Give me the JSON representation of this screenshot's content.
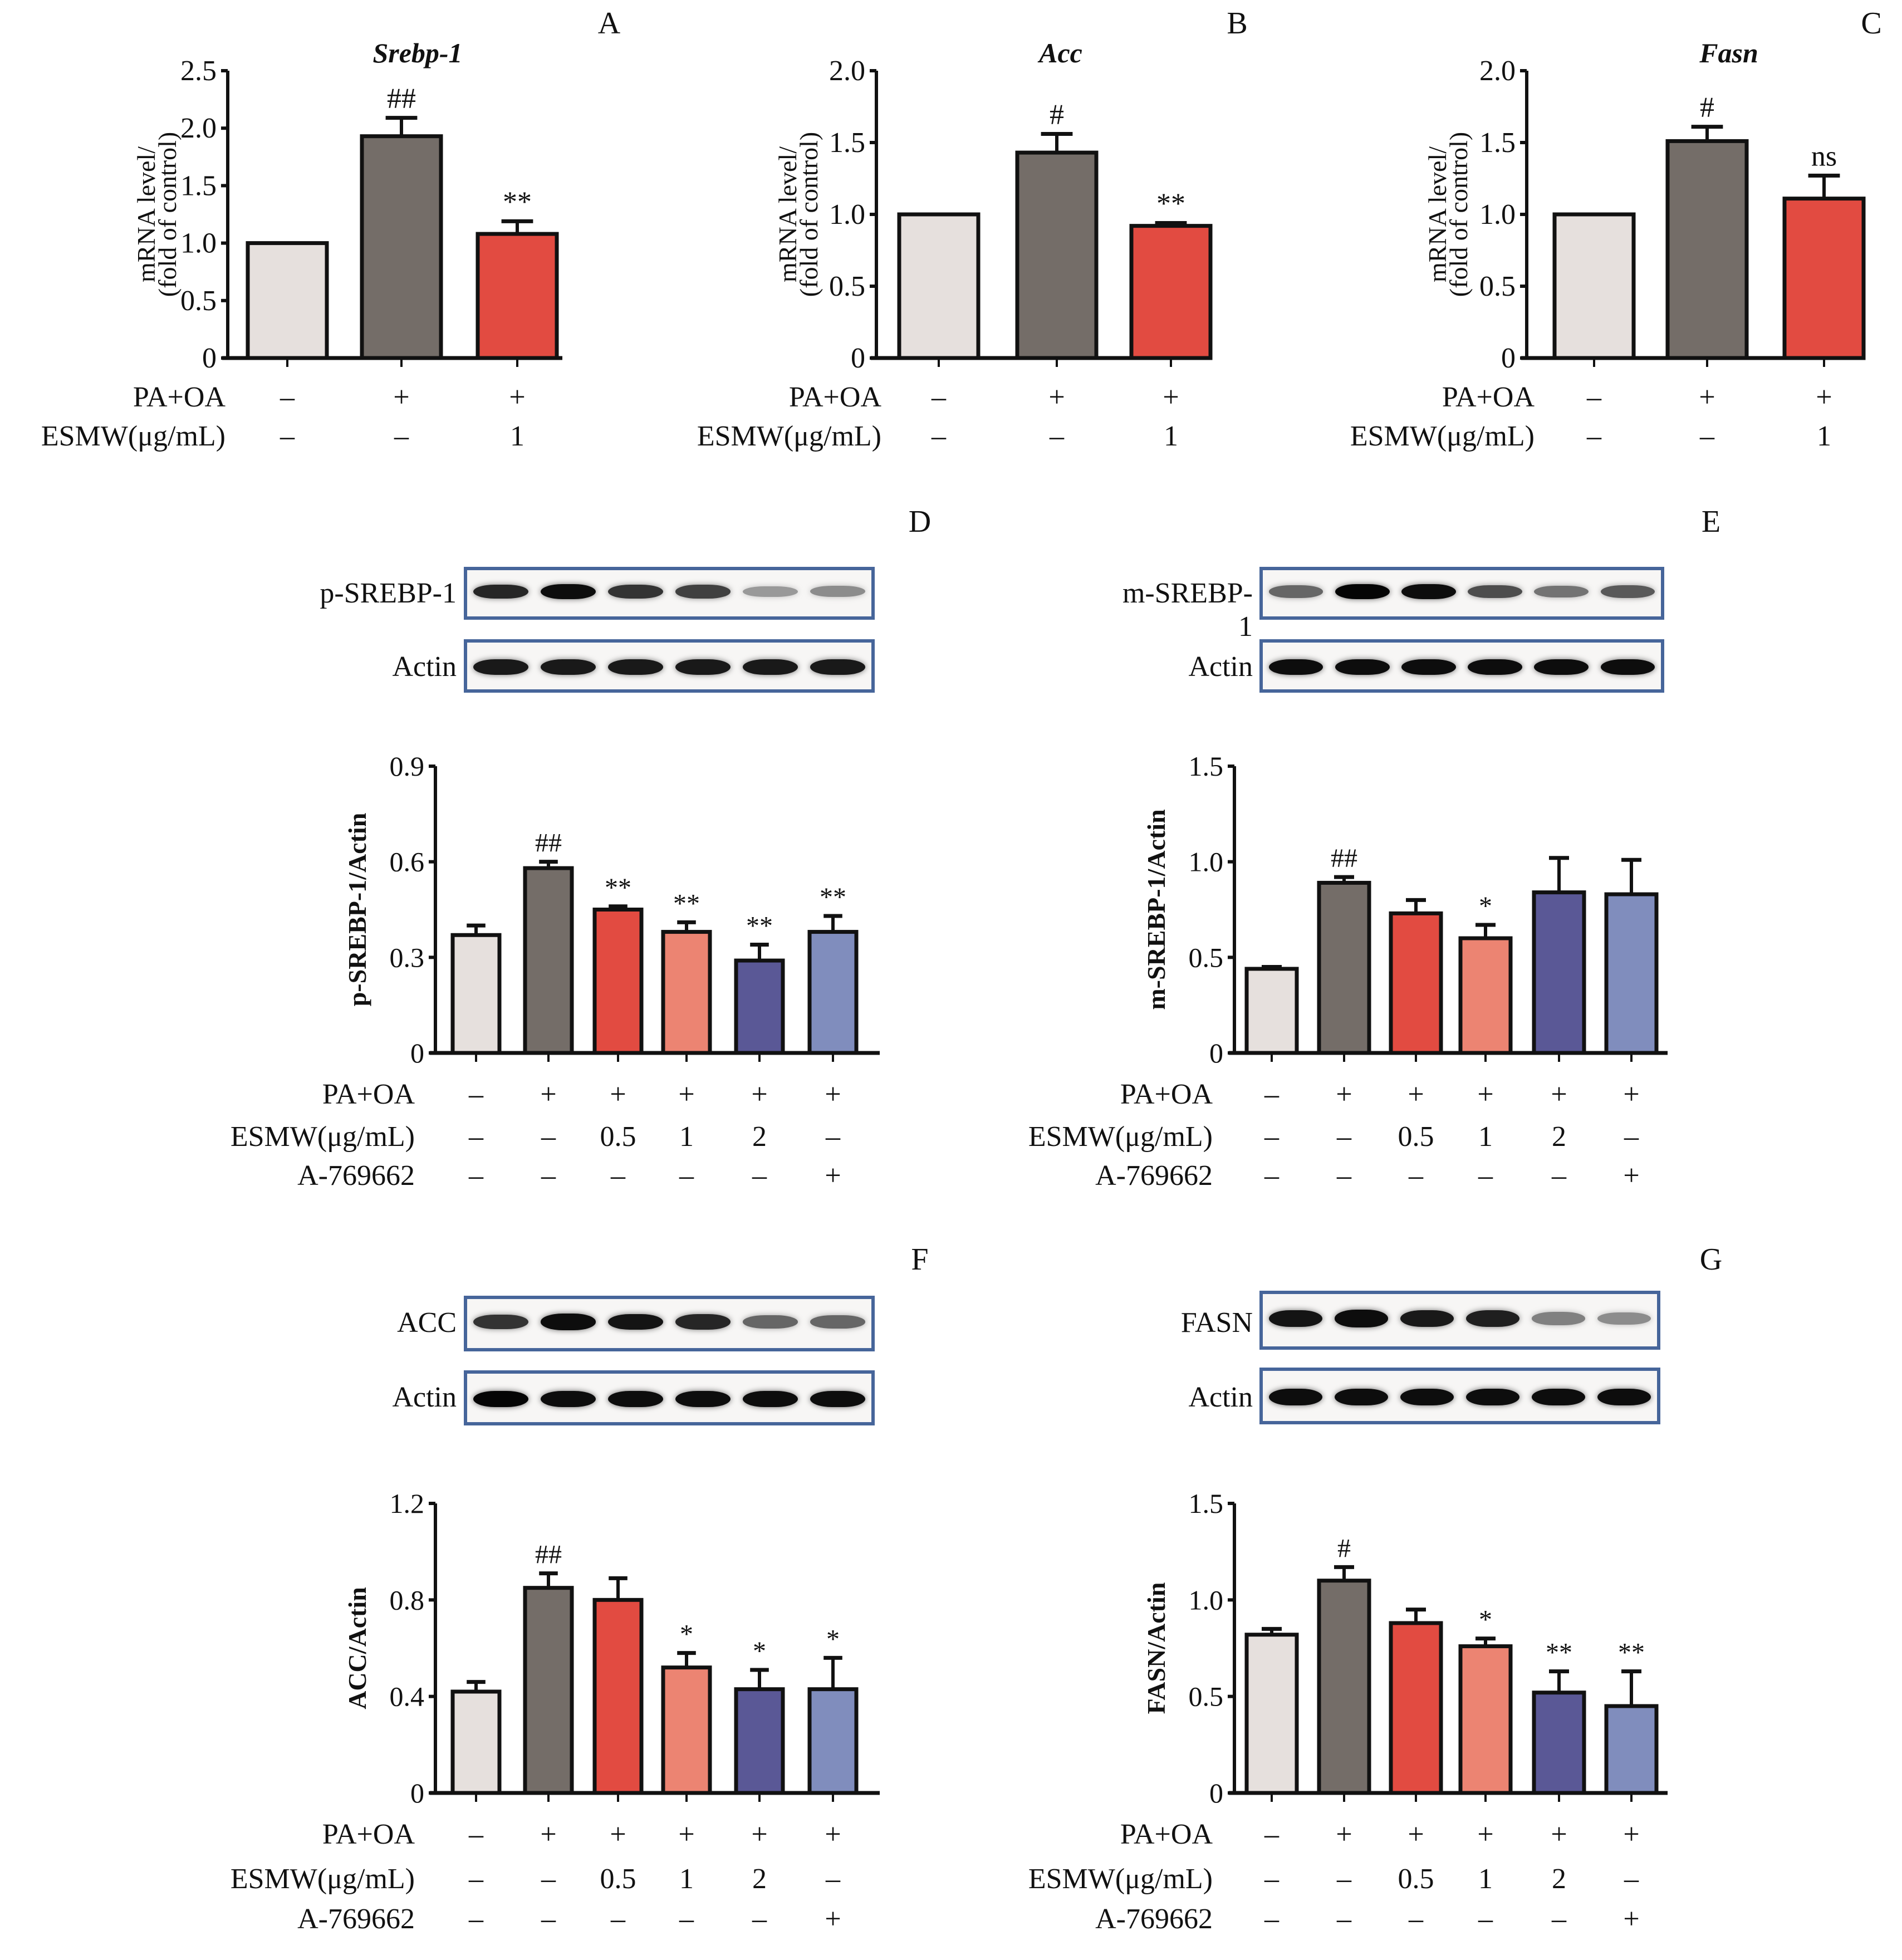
{
  "panel_letters": [
    "A",
    "B",
    "C",
    "D",
    "E",
    "F",
    "G"
  ],
  "treatment_labels": {
    "pa_oa": "PA+OA",
    "esmw": "ESMW(μg/mL)",
    "a769662": "A-769662"
  },
  "colors": {
    "control": "#E6E0DD",
    "model": "#746D68",
    "esmw_0_5": "#E24B41",
    "esmw_1": "#EC8472",
    "esmw_2": "#5A5896",
    "a769662": "#808DBD",
    "blot_frame": "#46659A"
  },
  "blots": {
    "D": {
      "target": "p-SREBP-1",
      "loading": "Actin",
      "target_intensity": [
        0.85,
        0.95,
        0.8,
        0.75,
        0.4,
        0.45
      ],
      "loading_intensity": [
        0.9,
        0.9,
        0.9,
        0.9,
        0.9,
        0.9
      ]
    },
    "E": {
      "target": "m-SREBP-1",
      "loading": "Actin",
      "target_intensity": [
        0.6,
        0.98,
        0.95,
        0.7,
        0.55,
        0.65
      ],
      "loading_intensity": [
        0.95,
        0.95,
        0.95,
        0.95,
        0.95,
        0.95
      ]
    },
    "F": {
      "target": "ACC",
      "loading": "Actin",
      "target_intensity": [
        0.8,
        0.95,
        0.92,
        0.85,
        0.6,
        0.6
      ],
      "loading_intensity": [
        0.98,
        0.95,
        0.95,
        0.95,
        0.95,
        0.95
      ]
    },
    "G": {
      "target": "FASN",
      "loading": "Actin",
      "target_intensity": [
        0.92,
        0.95,
        0.9,
        0.88,
        0.5,
        0.45
      ],
      "loading_intensity": [
        0.95,
        0.95,
        0.95,
        0.95,
        0.95,
        0.95
      ]
    }
  },
  "chart_data": [
    {
      "panel": "A",
      "type": "bar",
      "title": "Srebp-1",
      "title_italic": true,
      "ylabel": [
        "mRNA level/",
        "(fold of control)"
      ],
      "ylim": [
        0,
        2.5
      ],
      "yticks": [
        "0",
        "0.5",
        "1.0",
        "1.5",
        "2.0",
        "2.5"
      ],
      "ytick_values": [
        0,
        0.5,
        1.0,
        1.5,
        2.0,
        2.5
      ],
      "values": [
        1.0,
        1.93,
        1.08
      ],
      "error": [
        0.0,
        0.16,
        0.11
      ],
      "annotations": [
        "",
        "##",
        "**"
      ],
      "rows": {
        "pa_oa": [
          "–",
          "+",
          "+"
        ],
        "esmw": [
          "–",
          "–",
          "1"
        ]
      },
      "colors": [
        "control",
        "model",
        "esmw_0_5"
      ]
    },
    {
      "panel": "B",
      "type": "bar",
      "title": "Acc",
      "title_italic": true,
      "ylabel": [
        "mRNA level/",
        "(fold of control)"
      ],
      "ylim": [
        0,
        2.0
      ],
      "yticks": [
        "0",
        "0.5",
        "1.0",
        "1.5",
        "2.0"
      ],
      "ytick_values": [
        0,
        0.5,
        1.0,
        1.5,
        2.0
      ],
      "values": [
        1.0,
        1.43,
        0.92
      ],
      "error": [
        0.0,
        0.13,
        0.02
      ],
      "annotations": [
        "",
        "#",
        "**"
      ],
      "rows": {
        "pa_oa": [
          "–",
          "+",
          "+"
        ],
        "esmw": [
          "–",
          "–",
          "1"
        ]
      },
      "colors": [
        "control",
        "model",
        "esmw_0_5"
      ]
    },
    {
      "panel": "C",
      "type": "bar",
      "title": "Fasn",
      "title_italic": true,
      "ylabel": [
        "mRNA level/",
        "(fold of control)"
      ],
      "ylim": [
        0,
        2.0
      ],
      "yticks": [
        "0",
        "0.5",
        "1.0",
        "1.5",
        "2.0"
      ],
      "ytick_values": [
        0,
        0.5,
        1.0,
        1.5,
        2.0
      ],
      "values": [
        1.0,
        1.51,
        1.11
      ],
      "error": [
        0.0,
        0.1,
        0.16
      ],
      "annotations": [
        "",
        "#",
        "ns"
      ],
      "rows": {
        "pa_oa": [
          "–",
          "+",
          "+"
        ],
        "esmw": [
          "–",
          "–",
          "1"
        ]
      },
      "colors": [
        "control",
        "model",
        "esmw_0_5"
      ]
    },
    {
      "panel": "D",
      "type": "bar",
      "title": "",
      "ylabel": [
        "p-SREBP-1/Actin"
      ],
      "ylim": [
        0,
        0.9
      ],
      "yticks": [
        "0",
        "0.3",
        "0.6",
        "0.9"
      ],
      "ytick_values": [
        0,
        0.3,
        0.6,
        0.9
      ],
      "values": [
        0.37,
        0.58,
        0.45,
        0.38,
        0.29,
        0.38
      ],
      "error": [
        0.03,
        0.02,
        0.01,
        0.03,
        0.05,
        0.05
      ],
      "annotations": [
        "",
        "##",
        "**",
        "**",
        "**",
        "**"
      ],
      "rows": {
        "pa_oa": [
          "–",
          "+",
          "+",
          "+",
          "+",
          "+"
        ],
        "esmw": [
          "–",
          "–",
          "0.5",
          "1",
          "2",
          "–"
        ],
        "a769662": [
          "–",
          "–",
          "–",
          "–",
          "–",
          "+"
        ]
      },
      "colors": [
        "control",
        "model",
        "esmw_0_5",
        "esmw_1",
        "esmw_2",
        "a769662"
      ]
    },
    {
      "panel": "E",
      "type": "bar",
      "title": "",
      "ylabel": [
        "m-SREBP-1/Actin"
      ],
      "ylim": [
        0,
        1.5
      ],
      "yticks": [
        "0",
        "0.5",
        "1.0",
        "1.5"
      ],
      "ytick_values": [
        0,
        0.5,
        1.0,
        1.5
      ],
      "values": [
        0.44,
        0.89,
        0.73,
        0.6,
        0.84,
        0.83
      ],
      "error": [
        0.01,
        0.03,
        0.07,
        0.07,
        0.18,
        0.18
      ],
      "annotations": [
        "",
        "##",
        "",
        "*",
        "",
        ""
      ],
      "rows": {
        "pa_oa": [
          "–",
          "+",
          "+",
          "+",
          "+",
          "+"
        ],
        "esmw": [
          "–",
          "–",
          "0.5",
          "1",
          "2",
          "–"
        ],
        "a769662": [
          "–",
          "–",
          "–",
          "–",
          "–",
          "+"
        ]
      },
      "colors": [
        "control",
        "model",
        "esmw_0_5",
        "esmw_1",
        "esmw_2",
        "a769662"
      ]
    },
    {
      "panel": "F",
      "type": "bar",
      "title": "",
      "ylabel": [
        "ACC/Actin"
      ],
      "ylim": [
        0,
        1.2
      ],
      "yticks": [
        "0",
        "0.4",
        "0.8",
        "1.2"
      ],
      "ytick_values": [
        0,
        0.4,
        0.8,
        1.2
      ],
      "values": [
        0.42,
        0.85,
        0.8,
        0.52,
        0.43,
        0.43
      ],
      "error": [
        0.04,
        0.06,
        0.09,
        0.06,
        0.08,
        0.13
      ],
      "annotations": [
        "",
        "##",
        "",
        "*",
        "*",
        "*"
      ],
      "rows": {
        "pa_oa": [
          "–",
          "+",
          "+",
          "+",
          "+",
          "+"
        ],
        "esmw": [
          "–",
          "–",
          "0.5",
          "1",
          "2",
          "–"
        ],
        "a769662": [
          "–",
          "–",
          "–",
          "–",
          "–",
          "+"
        ]
      },
      "colors": [
        "control",
        "model",
        "esmw_0_5",
        "esmw_1",
        "esmw_2",
        "a769662"
      ]
    },
    {
      "panel": "G",
      "type": "bar",
      "title": "",
      "ylabel": [
        "FASN/Actin"
      ],
      "ylim": [
        0,
        1.5
      ],
      "yticks": [
        "0",
        "0.5",
        "1.0",
        "1.5"
      ],
      "ytick_values": [
        0,
        0.5,
        1.0,
        1.5
      ],
      "values": [
        0.82,
        1.1,
        0.88,
        0.76,
        0.52,
        0.45
      ],
      "error": [
        0.03,
        0.07,
        0.07,
        0.04,
        0.11,
        0.18
      ],
      "annotations": [
        "",
        "#",
        "",
        "*",
        "**",
        "**"
      ],
      "rows": {
        "pa_oa": [
          "–",
          "+",
          "+",
          "+",
          "+",
          "+"
        ],
        "esmw": [
          "–",
          "–",
          "0.5",
          "1",
          "2",
          "–"
        ],
        "a769662": [
          "–",
          "–",
          "–",
          "–",
          "–",
          "+"
        ]
      },
      "colors": [
        "control",
        "model",
        "esmw_0_5",
        "esmw_1",
        "esmw_2",
        "a769662"
      ]
    }
  ]
}
